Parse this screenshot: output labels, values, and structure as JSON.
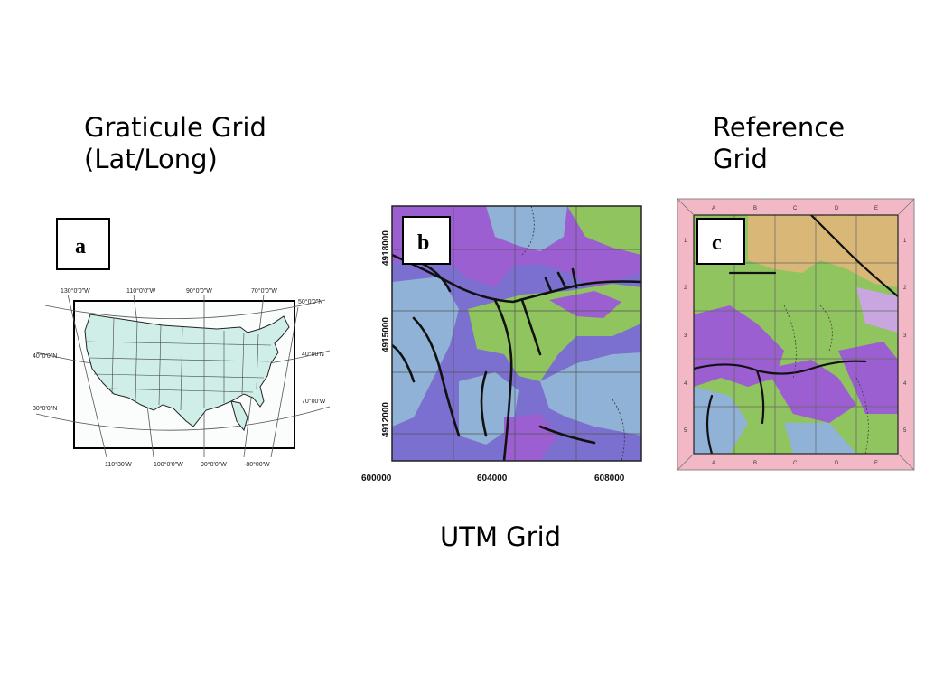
{
  "titles": {
    "graticule": "Graticule Grid\n(Lat/Long)",
    "reference": "Reference\nGrid",
    "utm": "UTM Grid"
  },
  "panel_a": {
    "label": "a",
    "top_ticks": [
      "130°0'0\"W",
      "110°0'0\"W",
      "90°0'0\"W",
      "70°0'0\"W"
    ],
    "bottom_ticks": [
      "110°30'W",
      "100°0'0\"W",
      "90°0'0\"W",
      "-80°00'W"
    ],
    "left_ticks": [
      "40°0'0\"N",
      "30°0'0\"N"
    ],
    "right_ticks": [
      "50°0'0\"N",
      "40°00'N",
      "70°00'W"
    ],
    "land_color": "#cfeee8"
  },
  "panel_b": {
    "label": "b",
    "y_ticks": [
      "4918000",
      "4915000",
      "4912000"
    ],
    "x_ticks": [
      "600000",
      "604000",
      "608000"
    ],
    "colors": {
      "purple": "#9b5fd1",
      "blue": "#8fb2d6",
      "green": "#8fc45f",
      "violet": "#7b6fcf"
    }
  },
  "panel_c": {
    "label": "c",
    "columns": [
      "A",
      "B",
      "C",
      "D",
      "E"
    ],
    "rows": [
      "1",
      "2",
      "3",
      "4",
      "5"
    ],
    "border_color": "#f2b8c6",
    "colors": {
      "tan": "#d8b777",
      "green": "#8fc45f",
      "purple": "#9b5fd1",
      "blue": "#8fb2d6"
    }
  }
}
